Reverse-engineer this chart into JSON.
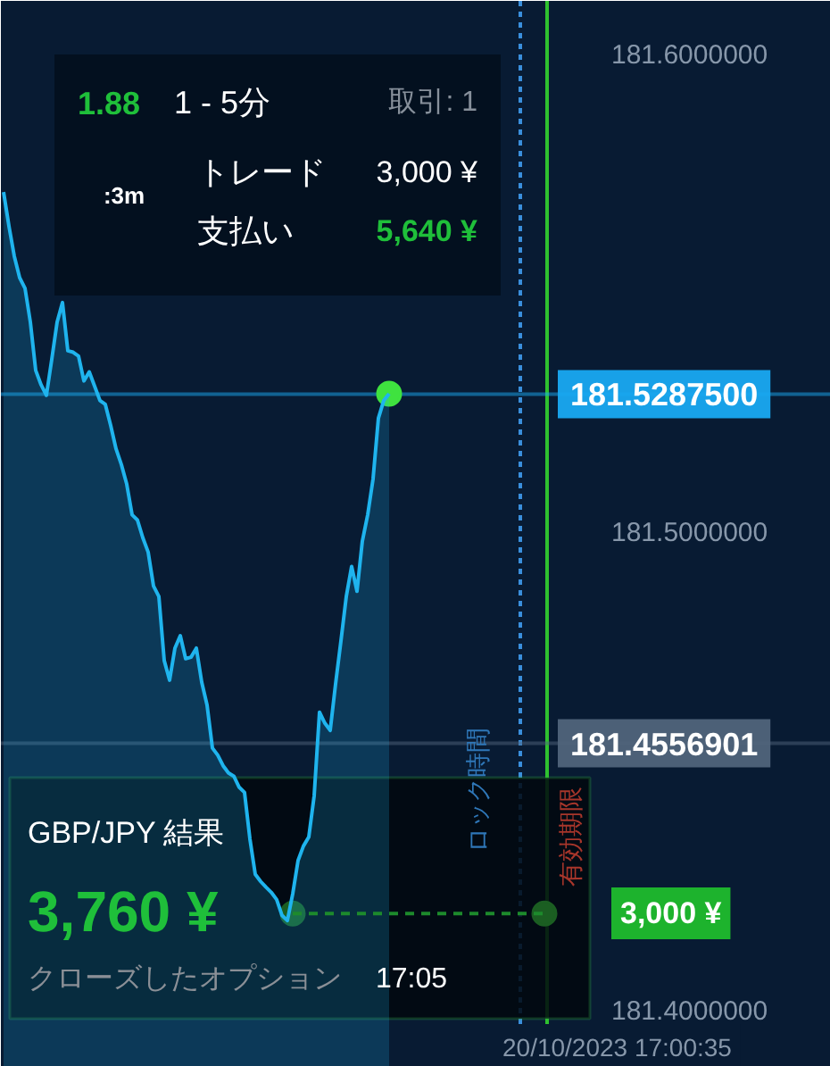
{
  "chart_data": {
    "type": "area",
    "tick_labels": "y",
    "grid": false,
    "categories": [
      null,
      null,
      null,
      null,
      null,
      null,
      null,
      null,
      null,
      null,
      null,
      null,
      null,
      null,
      null,
      null,
      null,
      null,
      null,
      null,
      null,
      null,
      null,
      null,
      null,
      null,
      null,
      null,
      null,
      null,
      null,
      null,
      null,
      null,
      null,
      null,
      null,
      null,
      null,
      null,
      null,
      null,
      null,
      null,
      null,
      null,
      null,
      null,
      null,
      null,
      null,
      null,
      null,
      null,
      null,
      null,
      null,
      null,
      null,
      null,
      null,
      null,
      null,
      null,
      null,
      null,
      null,
      null,
      null,
      null,
      null,
      null,
      null,
      null,
      null,
      null,
      null,
      null,
      null,
      null,
      null,
      null,
      null,
      null,
      null,
      null,
      null,
      null,
      null,
      null,
      null,
      null,
      null,
      null,
      null,
      null,
      null,
      null,
      null,
      null,
      null,
      null,
      null,
      null,
      null,
      null,
      null,
      null,
      null,
      null,
      null,
      null,
      null,
      null,
      null,
      null,
      null,
      null,
      null,
      null,
      null,
      null,
      null,
      null,
      null,
      null,
      null,
      null,
      null,
      null,
      null,
      null,
      null,
      null,
      null,
      null,
      null,
      null,
      null,
      null,
      null,
      null,
      null,
      null,
      null,
      null,
      null,
      null,
      null,
      null,
      null,
      null,
      null,
      null,
      null
    ],
    "ylim": [
      181.388,
      181.611
    ],
    "yticks": [
      {
        "value": 181.4,
        "label": "181.4000000"
      },
      {
        "value": 181.5,
        "label": "181.5000000"
      },
      {
        "value": 181.6,
        "label": "181.6000000"
      }
    ],
    "series": [
      {
        "color": "#1fb4ee",
        "values": [
          181.571,
          181.5639,
          181.5576,
          181.5531,
          181.5509,
          181.5438,
          181.5337,
          181.5307,
          181.5285,
          181.536,
          181.5438,
          181.5479,
          181.5378,
          181.5375,
          181.5367,
          181.5315,
          181.5334,
          181.5304,
          181.5274,
          181.5266,
          181.5222,
          181.5173,
          181.514,
          181.5099,
          181.5035,
          181.5024,
          181.4987,
          181.4957,
          181.4886,
          181.4864,
          181.473,
          181.4689,
          181.4756,
          181.4782,
          181.4734,
          181.4737,
          181.4756,
          181.4685,
          181.4637,
          181.4547,
          181.4532,
          181.451,
          181.4495,
          181.4488,
          181.4465,
          181.4454,
          181.4357,
          181.4283,
          181.4268,
          181.4256,
          181.4245,
          181.423,
          181.4197,
          181.4186,
          181.4242,
          181.4312,
          181.4342,
          181.4361,
          181.4447,
          181.4622,
          181.4599,
          181.4584,
          181.4681,
          181.4771,
          181.4864,
          181.4927,
          181.4875,
          181.498,
          181.5035,
          181.511,
          181.5237,
          181.5274,
          181.5288,
          null,
          null,
          null,
          null,
          null,
          null,
          null,
          null,
          null,
          null,
          null,
          null,
          null,
          null,
          null,
          null,
          null,
          null,
          null,
          null,
          null,
          null,
          null,
          null,
          null,
          null,
          null,
          null,
          null,
          null,
          null,
          null,
          null,
          null,
          null,
          null,
          null,
          null,
          null,
          null,
          null,
          null,
          null,
          null,
          null,
          null,
          null,
          null,
          null,
          null,
          null,
          null,
          null,
          null,
          null,
          null,
          null,
          null,
          null,
          null,
          null,
          null,
          null,
          null,
          null,
          null,
          null,
          null,
          null,
          null,
          null,
          null,
          null,
          null,
          null,
          null,
          null,
          null,
          null,
          null,
          null,
          null
        ]
      },
      {
        "type": "line",
        "color": "#1d8a2c",
        "line_style": "dashed",
        "values": [
          null,
          null,
          null,
          null,
          null,
          null,
          null,
          null,
          null,
          null,
          null,
          null,
          null,
          null,
          null,
          null,
          null,
          null,
          null,
          null,
          null,
          null,
          null,
          null,
          null,
          null,
          null,
          null,
          null,
          null,
          null,
          null,
          null,
          null,
          null,
          null,
          null,
          null,
          null,
          null,
          null,
          null,
          null,
          null,
          null,
          null,
          null,
          null,
          null,
          null,
          null,
          null,
          null,
          null,
          181.4201,
          181.4201,
          181.4201,
          181.4201,
          181.4201,
          181.4201,
          181.4201,
          181.4201,
          181.4201,
          181.4201,
          181.4201,
          181.4201,
          181.4201,
          181.4201,
          181.4201,
          181.4201,
          181.4201,
          181.4201,
          181.4201,
          181.4201,
          181.4201,
          181.4201,
          181.4201,
          181.4201,
          181.4201,
          181.4201,
          181.4201,
          181.4201,
          181.4201,
          181.4201,
          181.4201,
          181.4201,
          181.4201,
          181.4201,
          181.4201,
          181.4201,
          181.4201,
          181.4201,
          181.4201,
          181.4201,
          181.4201,
          181.4201,
          181.4201,
          181.4201,
          181.4201,
          181.4201,
          181.4201,
          181.4201,
          null,
          null,
          null,
          null,
          null,
          null,
          null,
          null,
          null,
          null,
          null,
          null,
          null,
          null,
          null,
          null,
          null,
          null,
          null,
          null,
          null,
          null,
          null,
          null,
          null,
          null,
          null,
          null,
          null,
          null,
          null,
          null,
          null,
          null,
          null,
          null,
          null,
          null,
          null,
          null,
          null,
          null,
          null,
          null,
          null,
          null,
          null,
          null,
          null,
          null,
          null,
          null,
          null
        ]
      },
      {
        "type": "scatter",
        "color": "#1b5e22",
        "marker": "circle",
        "values": [
          null,
          null,
          null,
          null,
          null,
          null,
          null,
          null,
          null,
          null,
          null,
          null,
          null,
          null,
          null,
          null,
          null,
          null,
          null,
          null,
          null,
          null,
          null,
          null,
          null,
          null,
          null,
          null,
          null,
          null,
          null,
          null,
          null,
          null,
          null,
          null,
          null,
          null,
          null,
          null,
          null,
          null,
          null,
          null,
          null,
          null,
          null,
          null,
          null,
          null,
          null,
          null,
          null,
          null,
          181.4201,
          null,
          null,
          null,
          null,
          null,
          null,
          null,
          null,
          null,
          null,
          null,
          null,
          null,
          null,
          null,
          null,
          null,
          null,
          null,
          null,
          null,
          null,
          null,
          null,
          null,
          null,
          null,
          null,
          null,
          null,
          null,
          null,
          null,
          null,
          null,
          null,
          null,
          null,
          null,
          null,
          null,
          null,
          null,
          null,
          null,
          null,
          181.4201,
          null,
          null,
          null,
          null,
          null,
          null,
          null,
          null,
          null,
          null,
          null,
          null,
          null,
          null,
          null,
          null,
          null,
          null,
          null,
          null,
          null,
          null,
          null,
          null,
          null,
          null,
          null,
          null,
          null,
          null,
          null,
          null,
          null,
          null,
          null,
          null,
          null,
          null,
          null,
          null,
          null,
          null,
          null,
          null,
          null,
          null,
          null,
          null,
          null,
          null,
          null,
          null,
          null
        ]
      },
      {
        "type": "scatter",
        "color": "#3fe23f",
        "marker": "circle",
        "values": [
          null,
          null,
          null,
          null,
          null,
          null,
          null,
          null,
          null,
          null,
          null,
          null,
          null,
          null,
          null,
          null,
          null,
          null,
          null,
          null,
          null,
          null,
          null,
          null,
          null,
          null,
          null,
          null,
          null,
          null,
          null,
          null,
          null,
          null,
          null,
          null,
          null,
          null,
          null,
          null,
          null,
          null,
          null,
          null,
          null,
          null,
          null,
          null,
          null,
          null,
          null,
          null,
          null,
          null,
          null,
          null,
          null,
          null,
          null,
          null,
          null,
          null,
          null,
          null,
          null,
          null,
          null,
          null,
          null,
          null,
          null,
          null,
          181.5288,
          null,
          null,
          null,
          null,
          null,
          null,
          null,
          null,
          null,
          null,
          null,
          null,
          null,
          null,
          null,
          null,
          null,
          null,
          null,
          null,
          null,
          null,
          null,
          null,
          null,
          null,
          null,
          null,
          null,
          null,
          null,
          null,
          null,
          null,
          null,
          null,
          null,
          null,
          null,
          null,
          null,
          null,
          null,
          null,
          null,
          null,
          null,
          null,
          null,
          null,
          null,
          null,
          null,
          null,
          null,
          null,
          null,
          null,
          null,
          null,
          null,
          null,
          null,
          null,
          null,
          null,
          null,
          null,
          null,
          null,
          null,
          null,
          null,
          null,
          null,
          null,
          null,
          null,
          null,
          null,
          null,
          null
        ]
      }
    ],
    "ref_lines": [
      {
        "axis": "y",
        "value": 181.52875,
        "label": "181.5287500",
        "color": "#19a9f2"
      },
      {
        "axis": "y",
        "value": 181.4556901,
        "label": "181.4556901",
        "color": "#50647b"
      }
    ],
    "annotations": [
      "1.88",
      "1 - 5分",
      "取引: 1",
      ":3m",
      "トレード",
      "3,000 ¥",
      "支払い",
      "5,640 ¥",
      "GBP/JPY 結果",
      "3,760 ¥",
      "クローズしたオプション",
      "17:05",
      "ロック時間",
      "有効期限",
      "3,000 ¥",
      "20/10/2023 17:00:35"
    ]
  }
}
